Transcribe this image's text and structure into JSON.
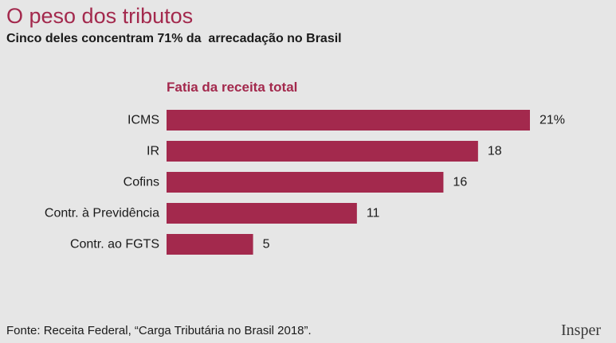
{
  "header": {
    "title": "O peso dos tributos",
    "subtitle": "Cinco deles concentram 71% da  arrecadação no Brasil"
  },
  "chart_data": {
    "type": "bar",
    "orientation": "horizontal",
    "title": "Fatia da receita total",
    "categories": [
      "ICMS",
      "IR",
      "Cofins",
      "Contr. à Previdência",
      "Contr. ao FGTS"
    ],
    "values": [
      21,
      18,
      16,
      11,
      5
    ],
    "value_labels": [
      "21%",
      "18",
      "16",
      "11",
      "5"
    ],
    "xlim": [
      0,
      21
    ],
    "grid": false,
    "legend": "none",
    "bar_color": "#a3294d"
  },
  "footer": {
    "source": "Fonte: Receita Federal, “Carga Tributária no Brasil 2018”.",
    "logo": "Insper"
  },
  "colors": {
    "background": "#e6e6e6",
    "accent": "#a3294d",
    "text": "#1a1a1a"
  }
}
